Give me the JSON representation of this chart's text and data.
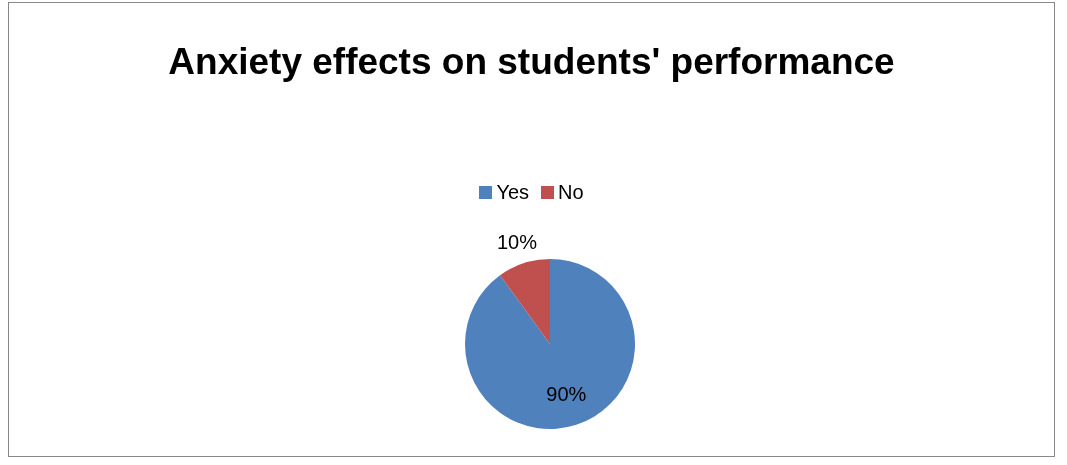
{
  "chart_data": {
    "type": "pie",
    "title": "Anxiety effects on students' performance",
    "categories": [
      "Yes",
      "No"
    ],
    "values": [
      90,
      10
    ],
    "colors": [
      "#4f81bd",
      "#c0504d"
    ],
    "value_labels": [
      "90%",
      "10%"
    ],
    "legend": "top"
  }
}
